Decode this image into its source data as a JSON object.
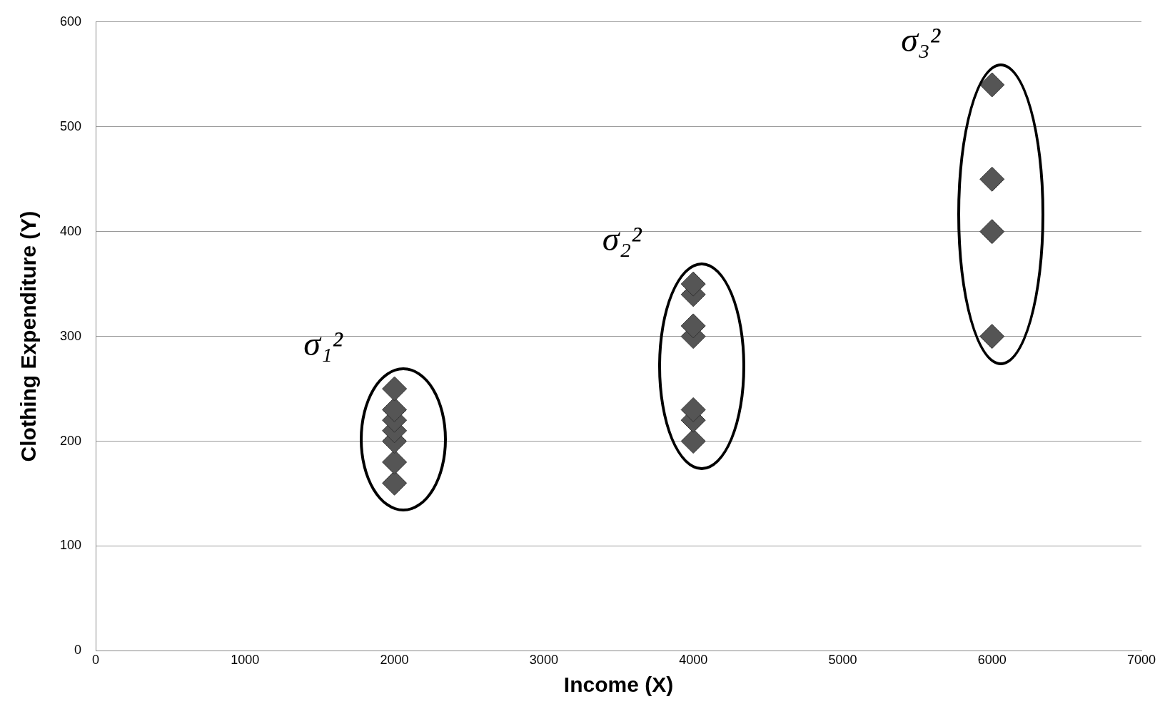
{
  "chart_data": {
    "type": "scatter",
    "xlabel": "Income (X)",
    "ylabel": "Clothing Expenditure (Y)",
    "x": [
      2000,
      2000,
      2000,
      2000,
      2000,
      2000,
      2000,
      4000,
      4000,
      4000,
      4000,
      4000,
      4000,
      4000,
      6000,
      6000,
      6000,
      6000
    ],
    "values": [
      160,
      180,
      200,
      210,
      220,
      230,
      250,
      200,
      220,
      230,
      300,
      310,
      340,
      350,
      300,
      400,
      450,
      540
    ],
    "color": "#555555",
    "marker": "diamond",
    "grid": "y",
    "legend": false,
    "xlim": [
      0,
      7000
    ],
    "xticks": [
      0,
      1000,
      2000,
      3000,
      4000,
      5000,
      6000,
      7000
    ],
    "ylim": [
      0,
      600
    ],
    "yticks": [
      0,
      100,
      200,
      300,
      400,
      500,
      600
    ],
    "annotations": [
      "σ₁²",
      "σ₂²",
      "σ₃²"
    ]
  }
}
